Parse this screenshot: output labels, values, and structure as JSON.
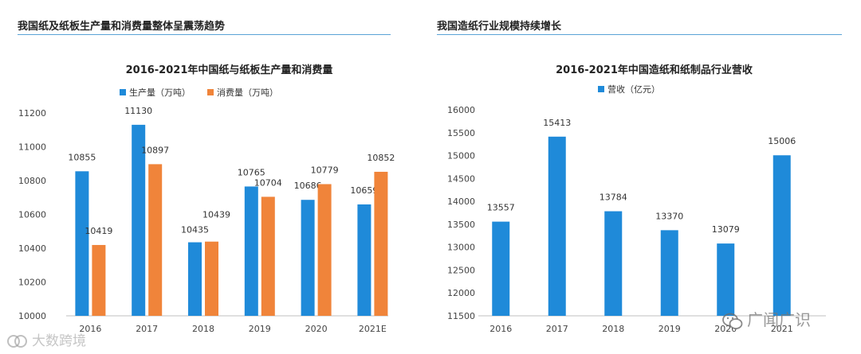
{
  "panels": {
    "left_heading": "我国纸及纸板生产量和消费量整体呈震荡趋势",
    "right_heading": "我国造纸行业规模持续增长"
  },
  "watermarks": {
    "left": "大数跨境",
    "right": "广闻广识"
  },
  "colors": {
    "blue": "#1f8ad9",
    "orange": "#f0843a",
    "grid": "#d9d9d9",
    "heading_rule": "#5aa3d6"
  },
  "chart_data": [
    {
      "type": "bar",
      "title": "2016-2021年中国纸与纸板生产量和消费量",
      "categories": [
        "2016",
        "2017",
        "2018",
        "2019",
        "2020",
        "2021E"
      ],
      "series": [
        {
          "name": "生产量（万吨）",
          "values": [
            10855,
            11130,
            10435,
            10765,
            10686,
            10659
          ]
        },
        {
          "name": "消费量（万吨）",
          "values": [
            10419,
            10897,
            10439,
            10704,
            10779,
            10852
          ]
        }
      ],
      "ylim": [
        10000,
        11200
      ],
      "yticks": [
        10000,
        10200,
        10400,
        10600,
        10800,
        11000,
        11200
      ],
      "legend": "top",
      "grid": false
    },
    {
      "type": "bar",
      "title": "2016-2021年中国造纸和纸制品行业营收",
      "categories": [
        "2016",
        "2017",
        "2018",
        "2019",
        "2020",
        "2021"
      ],
      "series": [
        {
          "name": "营收（亿元）",
          "values": [
            13557,
            15413,
            13784,
            13370,
            13079,
            15006
          ]
        }
      ],
      "ylim": [
        11500,
        16000
      ],
      "yticks": [
        11500,
        12000,
        12500,
        13000,
        13500,
        14000,
        14500,
        15000,
        15500,
        16000
      ],
      "legend": "top",
      "grid": false
    }
  ]
}
